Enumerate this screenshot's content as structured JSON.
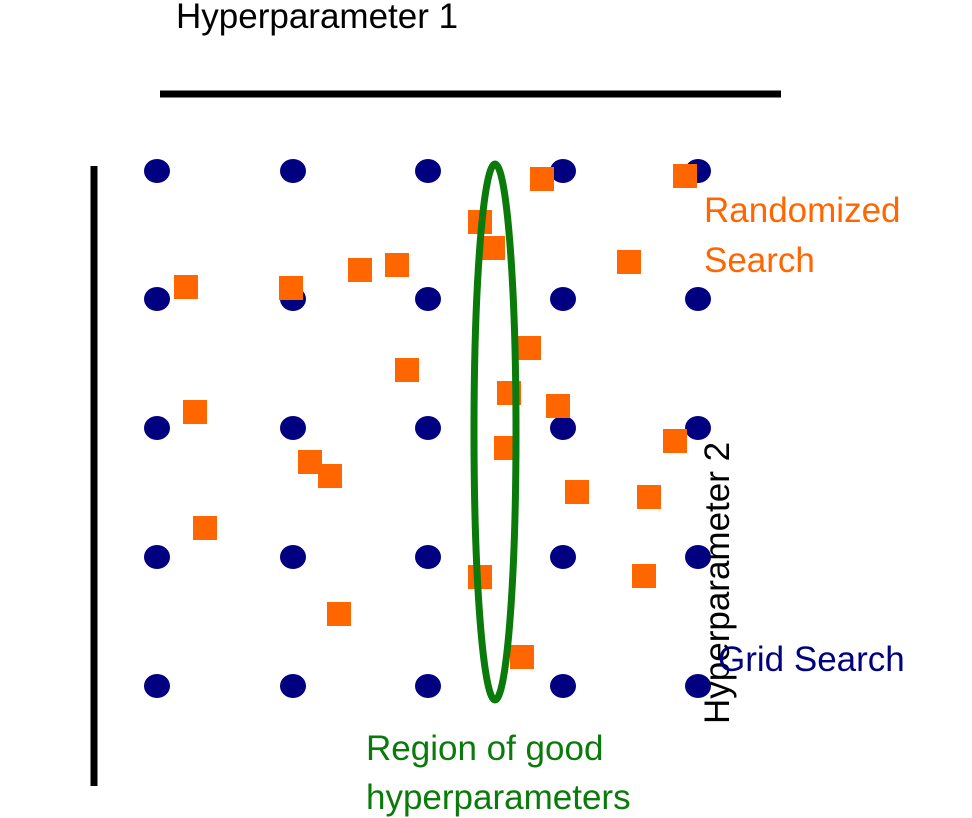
{
  "labels": {
    "hyperparameter_1": "Hyperparameter 1",
    "hyperparameter_2": "Hyperparameter 2",
    "randomized_line1": "Randomized",
    "randomized_line2": "Search",
    "grid_search": "Grid Search",
    "region_line1": "Region of good",
    "region_line2": "hyperparameters"
  },
  "colors": {
    "axis": "#000000",
    "grid_point": "#000080",
    "random_point": "#ff6600",
    "region": "#0a7a0a",
    "randomized_label": "#ff6600",
    "grid_label": "#000080",
    "region_label": "#0a7a0a"
  },
  "chart_data": {
    "type": "scatter",
    "grid_search": {
      "columns": 5,
      "rows": 5
    },
    "randomized_search": {
      "count": 25
    },
    "region_of_good_hyperparameters": {
      "shape": "ellipse",
      "along_hyperparameter": "Hyperparameter 1"
    }
  }
}
